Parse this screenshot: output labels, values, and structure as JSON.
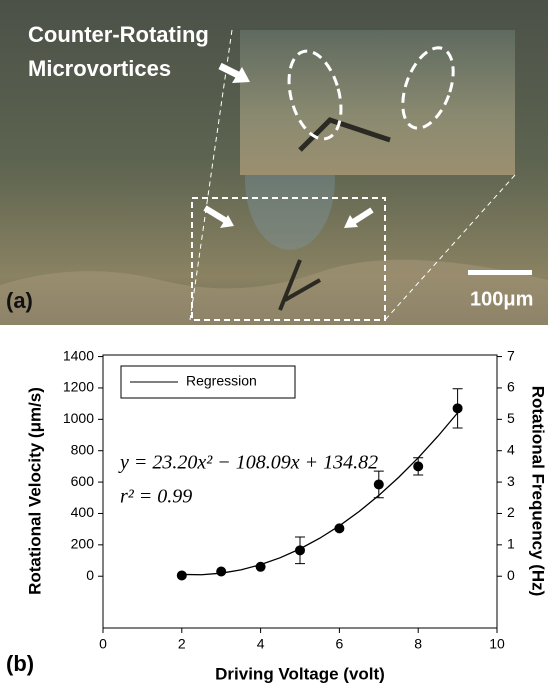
{
  "image": {
    "caption_lines": [
      "Counter-Rotating",
      "Microvortices"
    ],
    "panel_label": "(a)",
    "scale_bar": "100μm"
  },
  "chart_data": {
    "type": "line",
    "panel_label": "(b)",
    "x_label": "Driving Voltage (volt)",
    "y_label": "Rotational Velocity (μm/s)",
    "y2_label": "Rotational Frequency (Hz)",
    "equation": "y = 23.20x² − 108.09x + 134.82",
    "r_squared": "r² = 0.99",
    "xlim": [
      0,
      10
    ],
    "xticks": [
      0,
      2,
      4,
      6,
      8,
      10
    ],
    "ylim": [
      -330,
      1410
    ],
    "yticks": [
      0,
      200,
      400,
      600,
      800,
      1000,
      1200,
      1400
    ],
    "y2lim": [
      -1.65,
      7.05
    ],
    "y2ticks": [
      0,
      1,
      2,
      3,
      4,
      5,
      6,
      7
    ],
    "legend": "upper left",
    "series": [
      {
        "name": "Regression",
        "color": "#000000",
        "x": [
          2,
          2.5,
          3,
          3.5,
          4,
          4.5,
          5,
          5.5,
          6,
          6.5,
          7,
          7.5,
          8,
          8.5,
          9
        ],
        "values": [
          11.4,
          9.6,
          19.4,
          40.7,
          73.7,
          118.2,
          174.4,
          242.1,
          321.5,
          412.4,
          515.0,
          629.1,
          754.9,
          892.2,
          1041.2
        ]
      },
      {
        "color": "#000000",
        "x": [
          2,
          3,
          4,
          5,
          6,
          7,
          8,
          9
        ],
        "values": [
          5,
          30,
          60,
          165,
          305,
          585,
          700,
          1070
        ],
        "errors": [
          0,
          0,
          0,
          85,
          0,
          85,
          55,
          125
        ]
      }
    ]
  }
}
